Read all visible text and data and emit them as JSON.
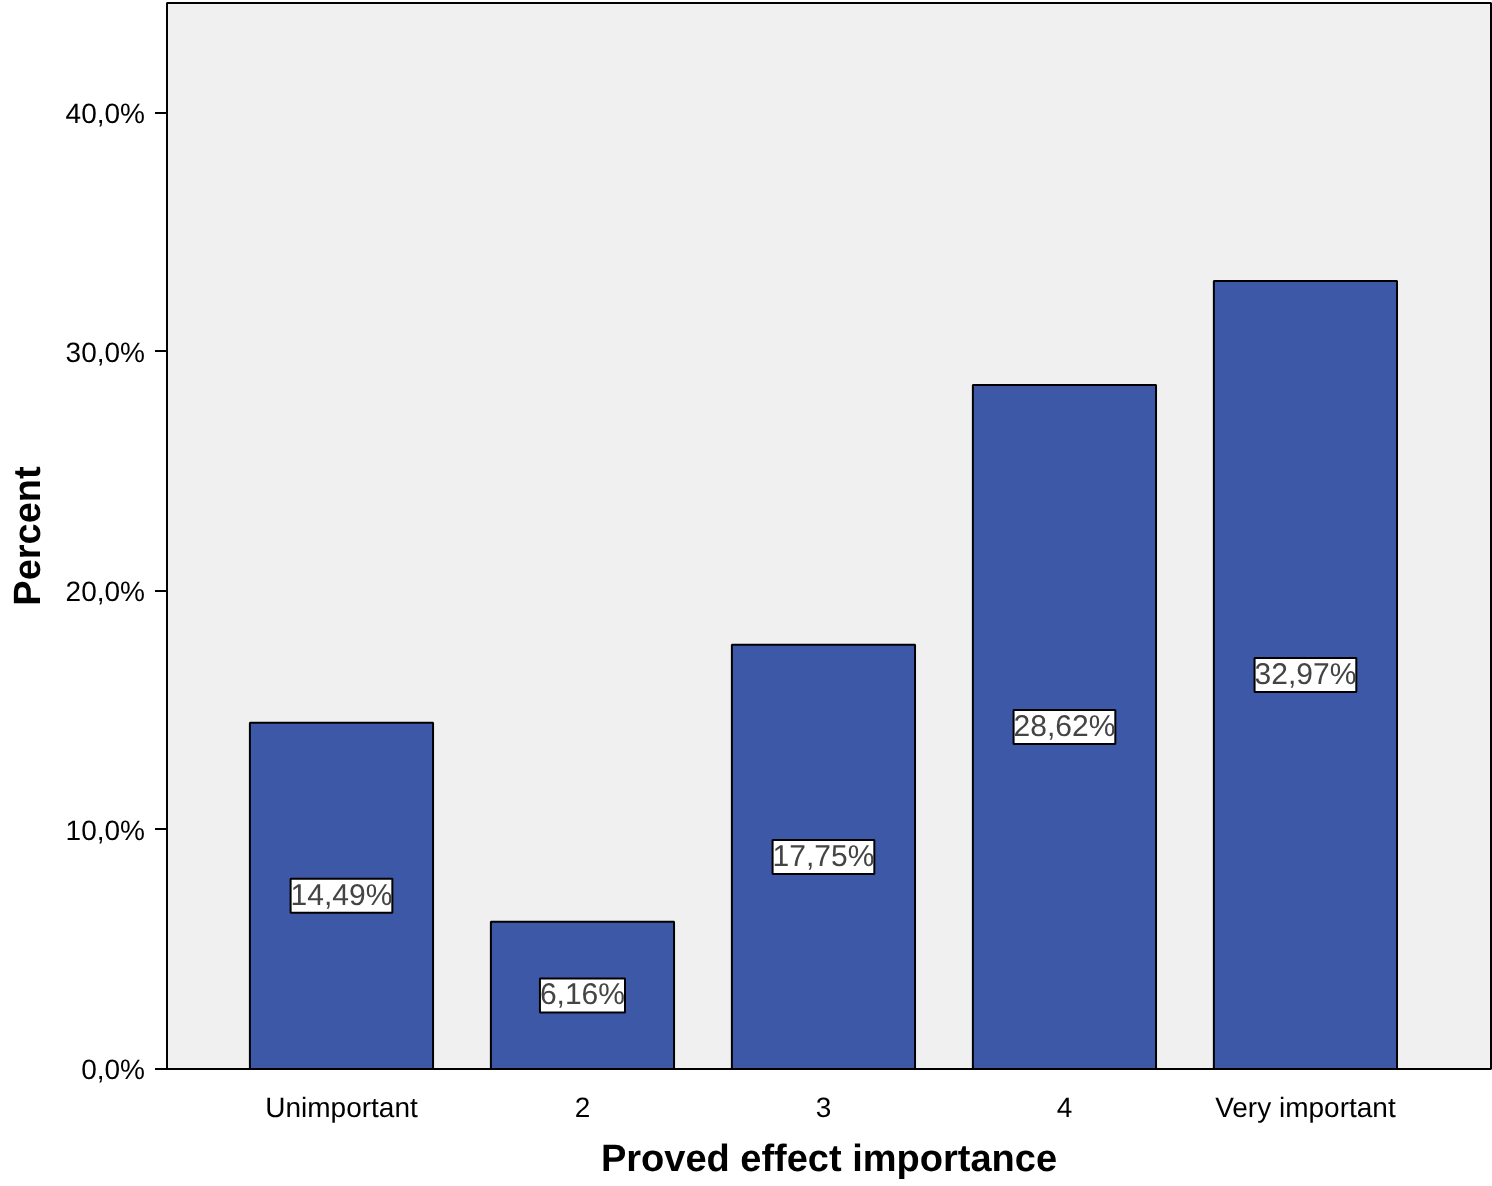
{
  "chart_data": {
    "type": "bar",
    "xlabel": "Proved effect importance",
    "ylabel": "Percent",
    "categories": [
      "Unimportant",
      "2",
      "3",
      "4",
      "Very important"
    ],
    "values": [
      14.49,
      6.16,
      17.75,
      28.62,
      32.97
    ],
    "value_labels": [
      "14,49%",
      "6,16%",
      "17,75%",
      "28,62%",
      "32,97%"
    ],
    "color": "#3e58a8",
    "ylim": [
      0,
      44.6
    ],
    "yticks": [
      {
        "value": 0,
        "label": "0,0%"
      },
      {
        "value": 10,
        "label": "10,0%"
      },
      {
        "value": 20,
        "label": "20,0%"
      },
      {
        "value": 30,
        "label": "30,0%"
      },
      {
        "value": 40,
        "label": "40,0%"
      }
    ],
    "grid": false
  }
}
